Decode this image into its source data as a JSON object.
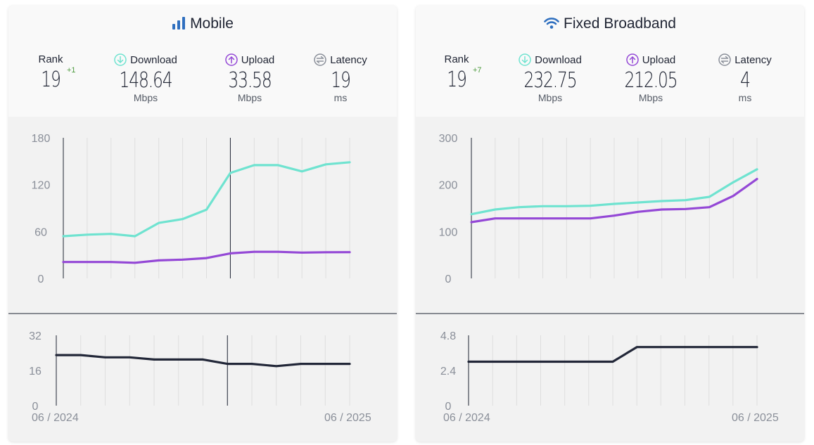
{
  "panels": {
    "mobile": {
      "title": "Mobile",
      "icon": "signal-bars-icon",
      "rank": {
        "label": "Rank",
        "value": "19",
        "change": "+1"
      },
      "download": {
        "label": "Download",
        "value": "148.64",
        "unit": "Mbps"
      },
      "upload": {
        "label": "Upload",
        "value": "33.58",
        "unit": "Mbps"
      },
      "latency": {
        "label": "Latency",
        "value": "19",
        "unit": "ms"
      },
      "date_start": "06 / 2024",
      "date_end": "06 / 2025"
    },
    "fixed": {
      "title": "Fixed Broadband",
      "icon": "wifi-icon",
      "rank": {
        "label": "Rank",
        "value": "19",
        "change": "+7"
      },
      "download": {
        "label": "Download",
        "value": "232.75",
        "unit": "Mbps"
      },
      "upload": {
        "label": "Upload",
        "value": "212.05",
        "unit": "Mbps"
      },
      "latency": {
        "label": "Latency",
        "value": "4",
        "unit": "ms"
      },
      "date_start": "06 / 2024",
      "date_end": "06 / 2025"
    }
  },
  "colors": {
    "download": "#6fe3d0",
    "upload": "#9448d6",
    "latency": "#222738",
    "text": "#1f2433",
    "rank_change": "#4b9a3c"
  },
  "chart_data": [
    {
      "type": "line",
      "panel": "mobile",
      "chart": "speed",
      "x": [
        "06/2024",
        "07/2024",
        "08/2024",
        "09/2024",
        "10/2024",
        "11/2024",
        "12/2024",
        "01/2025",
        "02/2025",
        "03/2025",
        "04/2025",
        "05/2025",
        "06/2025"
      ],
      "series": [
        {
          "name": "Download",
          "values": [
            54,
            56,
            57,
            54,
            71,
            76,
            88,
            135,
            145,
            145,
            137,
            146,
            148.64
          ]
        },
        {
          "name": "Upload",
          "values": [
            21,
            21,
            21,
            20,
            23,
            24,
            26,
            32,
            34,
            34,
            33,
            33.5,
            33.58
          ]
        }
      ],
      "ylim": [
        0,
        180
      ],
      "yticks": [
        0,
        60,
        120,
        180
      ],
      "markers": [
        "06/2024",
        "01/2025"
      ]
    },
    {
      "type": "line",
      "panel": "mobile",
      "chart": "latency",
      "x": [
        "06/2024",
        "07/2024",
        "08/2024",
        "09/2024",
        "10/2024",
        "11/2024",
        "12/2024",
        "01/2025",
        "02/2025",
        "03/2025",
        "04/2025",
        "05/2025",
        "06/2025"
      ],
      "series": [
        {
          "name": "Latency",
          "values": [
            23,
            23,
            22,
            22,
            21,
            21,
            21,
            19,
            19,
            18,
            19,
            19,
            19
          ]
        }
      ],
      "ylim": [
        0,
        32
      ],
      "yticks": [
        0,
        16,
        32
      ],
      "markers": [
        "06/2024",
        "01/2025"
      ]
    },
    {
      "type": "line",
      "panel": "fixed",
      "chart": "speed",
      "x": [
        "06/2024",
        "07/2024",
        "08/2024",
        "09/2024",
        "10/2024",
        "11/2024",
        "12/2024",
        "01/2025",
        "02/2025",
        "03/2025",
        "04/2025",
        "05/2025",
        "06/2025"
      ],
      "series": [
        {
          "name": "Download",
          "values": [
            137,
            147,
            152,
            154,
            154,
            155,
            159,
            162,
            165,
            167,
            174,
            205,
            232.75
          ]
        },
        {
          "name": "Upload",
          "values": [
            120,
            128,
            128,
            128,
            128,
            128,
            134,
            142,
            147,
            148,
            152,
            176,
            212.05
          ]
        }
      ],
      "ylim": [
        0,
        300
      ],
      "yticks": [
        0,
        100,
        200,
        300
      ],
      "markers": [
        "06/2024"
      ]
    },
    {
      "type": "line",
      "panel": "fixed",
      "chart": "latency",
      "x": [
        "06/2024",
        "07/2024",
        "08/2024",
        "09/2024",
        "10/2024",
        "11/2024",
        "12/2024",
        "01/2025",
        "02/2025",
        "03/2025",
        "04/2025",
        "05/2025",
        "06/2025"
      ],
      "series": [
        {
          "name": "Latency",
          "values": [
            3,
            3,
            3,
            3,
            3,
            3,
            3,
            4,
            4,
            4,
            4,
            4,
            4
          ]
        }
      ],
      "ylim": [
        0,
        4.8
      ],
      "yticks": [
        0,
        2.4,
        4.8
      ],
      "markers": [
        "06/2024"
      ]
    }
  ]
}
